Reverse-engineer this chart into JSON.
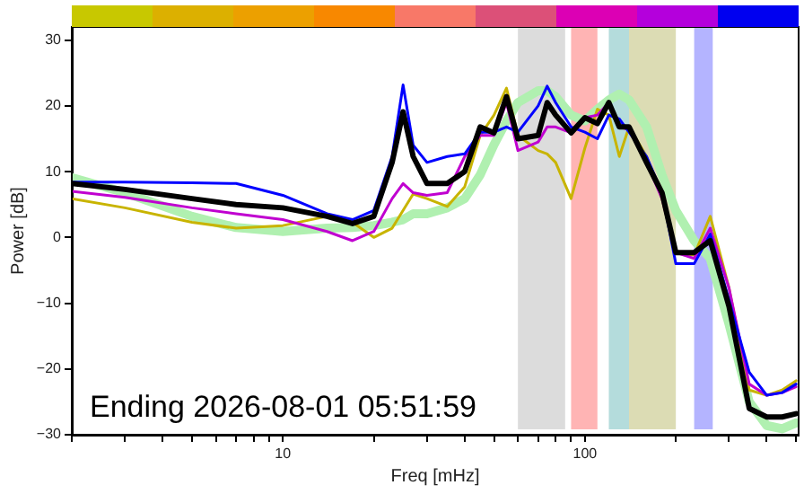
{
  "chart_data": {
    "type": "line",
    "xlabel": "Freq [mHz]",
    "ylabel": "Power [dB]",
    "log": "x",
    "grid": false,
    "legend": false,
    "marker": "none",
    "line_style": "solid",
    "x": [
      2,
      3,
      5,
      7,
      10,
      14,
      17,
      20,
      23,
      25,
      27,
      30,
      35,
      40,
      45,
      50,
      55,
      60,
      70,
      75,
      80,
      90,
      100,
      110,
      120,
      130,
      140,
      160,
      180,
      200,
      230,
      260,
      300,
      350,
      400,
      450,
      500
    ],
    "xlim": [
      2,
      510
    ],
    "ylim": [
      -30,
      32
    ],
    "xticks": [
      {
        "value": 2,
        "label": null
      },
      {
        "value": 3,
        "label": null
      },
      {
        "value": 4,
        "label": null
      },
      {
        "value": 5,
        "label": null
      },
      {
        "value": 6,
        "label": null
      },
      {
        "value": 7,
        "label": null
      },
      {
        "value": 8,
        "label": null
      },
      {
        "value": 9,
        "label": null
      },
      10,
      {
        "value": 20,
        "label": null
      },
      {
        "value": 30,
        "label": null
      },
      {
        "value": 40,
        "label": null
      },
      {
        "value": 50,
        "label": null
      },
      {
        "value": 60,
        "label": null
      },
      {
        "value": 70,
        "label": null
      },
      {
        "value": 80,
        "label": null
      },
      {
        "value": 90,
        "label": null
      },
      100,
      {
        "value": 200,
        "label": null
      },
      {
        "value": 300,
        "label": null
      },
      {
        "value": 400,
        "label": null
      },
      {
        "value": 500,
        "label": null
      }
    ],
    "yticks": [
      {
        "value": -30,
        "label": "−30"
      },
      {
        "value": -20,
        "label": "−20"
      },
      {
        "value": -10,
        "label": "−10"
      },
      0,
      10,
      20,
      30
    ],
    "series": [
      {
        "color": "#b0f0b0",
        "values": [
          9.1,
          6.8,
          3.2,
          1.5,
          0.9,
          1.4,
          1.5,
          1.8,
          2.3,
          2.7,
          3.6,
          3.6,
          4.5,
          5.9,
          9.5,
          14.1,
          17.7,
          20.5,
          22.3,
          22.3,
          21.4,
          18.6,
          17.7,
          19.5,
          20.9,
          21.8,
          20.9,
          16.8,
          9.5,
          4.1,
          -0.5,
          -3.2,
          -13.2,
          -25,
          -28.6,
          -29.1,
          -28.2
        ]
      },
      {
        "color": "#c8b400",
        "values": [
          5.9,
          4.5,
          2.3,
          1.4,
          1.8,
          3.2,
          2.3,
          0,
          1.4,
          4.1,
          6.6,
          5.9,
          4.7,
          7.7,
          15.5,
          18.6,
          22.7,
          15.5,
          13.2,
          12.7,
          11.4,
          5.9,
          13.6,
          19.5,
          18.6,
          12.3,
          16.8,
          12.3,
          5.9,
          -2.3,
          -2.7,
          3.2,
          -7.7,
          -23.2,
          -24,
          -23.2,
          -21.8
        ]
      },
      {
        "color": "#c000d0",
        "values": [
          7,
          6.1,
          4.5,
          3.6,
          2.7,
          0.9,
          -0.5,
          0.9,
          5.9,
          8.2,
          6.8,
          6.4,
          6.8,
          12.3,
          15.5,
          15.5,
          20.5,
          13.2,
          14.5,
          16.8,
          16.8,
          15.9,
          18.2,
          18.6,
          20.5,
          16.8,
          16.4,
          11.4,
          5.9,
          -2.3,
          -3.2,
          1.4,
          -7.7,
          -22.3,
          -24,
          -23.6,
          -22.7
        ]
      },
      {
        "color": "#0000ff",
        "values": [
          8.4,
          8.4,
          8.3,
          8.2,
          6.4,
          3.6,
          2.7,
          4.1,
          12.3,
          23.2,
          14,
          11.4,
          12.3,
          12.7,
          16,
          16,
          16.8,
          16,
          20,
          23,
          20.5,
          16.8,
          16,
          15,
          18.6,
          18,
          16,
          12.3,
          6.8,
          -4,
          -4,
          0.5,
          -9.5,
          -20.5,
          -24,
          -23.6,
          -22.3
        ]
      },
      {
        "color": "#000000",
        "values": [
          8.2,
          7.3,
          5.9,
          5,
          4.5,
          3.2,
          2.1,
          3.2,
          11.4,
          19.1,
          12.3,
          8.2,
          8.2,
          10,
          16.8,
          15.9,
          21.4,
          15,
          15.5,
          20.5,
          18.6,
          15.9,
          18.2,
          17.3,
          20.5,
          16.8,
          16.8,
          11.4,
          6.8,
          -2.3,
          -2.3,
          -0.5,
          -10.5,
          -26,
          -27.3,
          -27.3,
          -26.8
        ]
      }
    ],
    "bands": [
      {
        "axis": "x",
        "from": 60,
        "to": 86,
        "color": "#dcdcdc"
      },
      {
        "axis": "x",
        "from": 90,
        "to": 110,
        "color": "#ffb4b4"
      },
      {
        "axis": "x",
        "from": 120,
        "to": 140,
        "color": "#b4dcdc"
      },
      {
        "axis": "x",
        "from": 140,
        "to": 200,
        "color": "#dcdcb4"
      },
      {
        "axis": "x",
        "from": 230,
        "to": 265,
        "color": "#b4b4ff"
      }
    ],
    "annotations": [
      "Ending 2026-08-01 05:51:59"
    ]
  }
}
